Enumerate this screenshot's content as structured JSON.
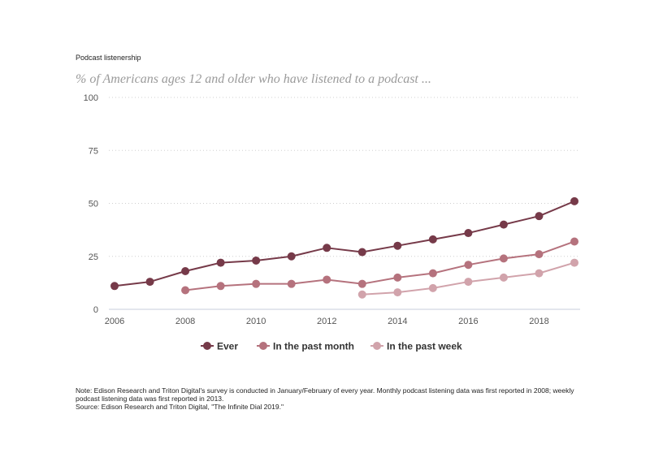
{
  "header": {
    "label": "Podcast listenership",
    "subtitle": "% of Americans ages 12 and older who have listened to a podcast ..."
  },
  "chart_data": {
    "type": "line",
    "x": [
      2006,
      2007,
      2008,
      2009,
      2010,
      2011,
      2012,
      2013,
      2014,
      2015,
      2016,
      2017,
      2018,
      2019
    ],
    "x_ticks": [
      2006,
      2008,
      2010,
      2012,
      2014,
      2016,
      2018
    ],
    "y_ticks": [
      0,
      25,
      50,
      75,
      100
    ],
    "xlim": [
      2006,
      2019
    ],
    "ylim": [
      0,
      100
    ],
    "grid": "horizontal dotted",
    "legend_position": "bottom-center",
    "series": [
      {
        "name": "Ever",
        "color": "#763a49",
        "values": [
          11,
          13,
          18,
          22,
          23,
          25,
          29,
          27,
          30,
          33,
          36,
          40,
          44,
          51
        ]
      },
      {
        "name": "In the past month",
        "color": "#b5727d",
        "values": [
          null,
          null,
          9,
          11,
          12,
          12,
          14,
          12,
          15,
          17,
          21,
          24,
          26,
          32
        ]
      },
      {
        "name": "In the past week",
        "color": "#d1a3ab",
        "values": [
          null,
          null,
          null,
          null,
          null,
          null,
          null,
          7,
          8,
          10,
          13,
          15,
          17,
          22
        ]
      }
    ]
  },
  "footer": {
    "note": "Note: Edison Research and Triton Digital's survey is conducted in January/February of every year. Monthly podcast listening data was first reported in 2008; weekly podcast listening data was first reported in 2013.",
    "source": "Source: Edison Research and Triton Digital, \"The Infinite Dial 2019.\""
  }
}
